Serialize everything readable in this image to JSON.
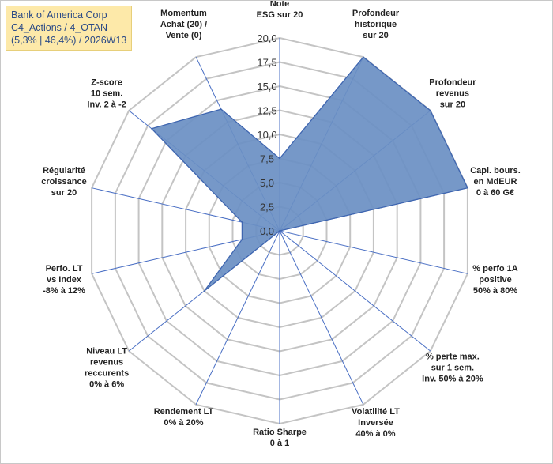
{
  "title_box": {
    "line1": "Bank of America Corp",
    "line2": "C4_Actions / 4_OTAN",
    "line3": "(5,3% | 46,4%) / 2026W13"
  },
  "chart_data": {
    "type": "radar",
    "rmax": 20,
    "ticks": [
      0,
      2.5,
      5,
      7.5,
      10,
      12.5,
      15,
      17.5,
      20
    ],
    "tick_labels": [
      "0,0",
      "2,5",
      "5,0",
      "7,5",
      "10,0",
      "12,5",
      "15,0",
      "17,5",
      "20,0"
    ],
    "categories": [
      [
        "Note",
        "ESG sur 20"
      ],
      [
        "Profondeur",
        "historique",
        "sur 20"
      ],
      [
        "Profondeur",
        "revenus",
        "sur 20"
      ],
      [
        "Capi. bours.",
        "en MdEUR",
        "0 à 60 G€"
      ],
      [
        "% perfo 1A",
        "positive",
        "50% à 80%"
      ],
      [
        "% perte max.",
        "sur 1 sem.",
        "Inv. 50% à 20%"
      ],
      [
        "Volatilité LT",
        "Inversée",
        "40% à 0%"
      ],
      [
        "Ratio Sharpe",
        "0 à 1"
      ],
      [
        "Rendement LT",
        "0% à 20%"
      ],
      [
        "Niveau LT",
        "revenus",
        "reccurents",
        "0% à 6%"
      ],
      [
        "Perfo. LT",
        "vs Index",
        "-8% à 12%"
      ],
      [
        "Régularité",
        "croissance",
        "sur 20"
      ],
      [
        "Z-score",
        "10 sem.",
        "Inv. 2 à -2"
      ],
      [
        "Momentum",
        "Achat (20) /",
        "Vente (0)"
      ]
    ],
    "values": [
      7.5,
      20,
      20,
      20,
      0,
      0,
      0,
      0,
      0,
      10,
      4,
      4,
      17,
      14
    ],
    "colors": {
      "fill": "#6a8fc3",
      "stroke": "#3f66b0",
      "grid": "#c4c4c4",
      "spoke": "#4a6fc4"
    }
  }
}
